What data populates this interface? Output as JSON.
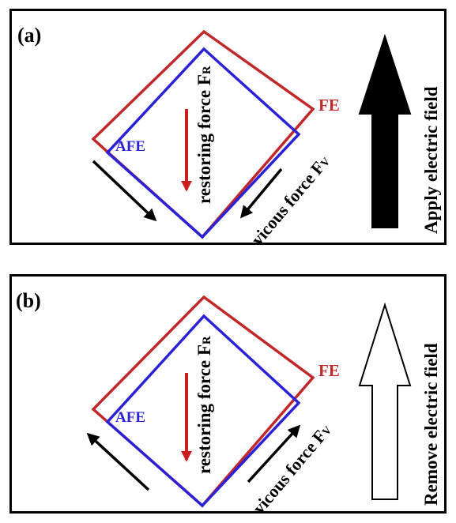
{
  "panels": [
    {
      "label": "(a)",
      "fe_label": "FE",
      "afe_label": "AFE",
      "restoring_force_text": "restoring force F",
      "restoring_force_sub": "R",
      "viscous_force_text": "vicous force F",
      "viscous_force_sub": "V",
      "field_text": "Apply electric field",
      "field_arrow_style": "filled",
      "motion_direction": "down"
    },
    {
      "label": "(b)",
      "fe_label": "FE",
      "afe_label": "AFE",
      "restoring_force_text": "restoring force F",
      "restoring_force_sub": "R",
      "viscous_force_text": "vicous force F",
      "viscous_force_sub": "V",
      "field_text": "Remove electric field",
      "field_arrow_style": "hollow",
      "motion_direction": "up"
    }
  ],
  "colors": {
    "fe": "#c0282a",
    "afe": "#2b22d6",
    "restoring_arrow": "#cc1d1d",
    "motion_arrow": "#000000",
    "frame": "#000000"
  }
}
